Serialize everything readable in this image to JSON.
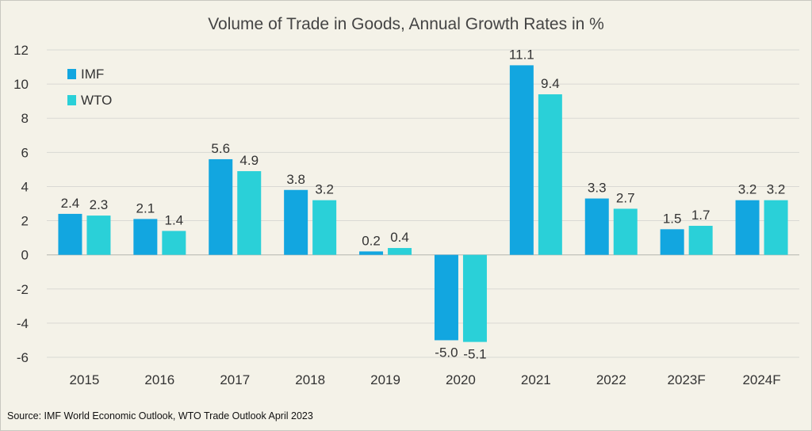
{
  "chart_data": {
    "type": "bar",
    "title": "Volume of Trade in Goods,  Annual Growth Rates in %",
    "categories": [
      "2015",
      "2016",
      "2017",
      "2018",
      "2019",
      "2020",
      "2021",
      "2022",
      "2023F",
      "2024F"
    ],
    "series": [
      {
        "name": "IMF",
        "color": "#12a6e0",
        "values": [
          2.4,
          2.1,
          5.6,
          3.8,
          0.2,
          -5.0,
          11.1,
          3.3,
          1.5,
          3.2
        ]
      },
      {
        "name": "WTO",
        "color": "#2ad0d8",
        "values": [
          2.3,
          1.4,
          4.9,
          3.2,
          0.4,
          -5.1,
          9.4,
          2.7,
          1.7,
          3.2
        ]
      }
    ],
    "value_labels": [
      [
        "2.4",
        "2.1",
        "5.6",
        "3.8",
        "0.2",
        "-5.0",
        "11.1",
        "3.3",
        "1.5",
        "3.2"
      ],
      [
        "2.3",
        "1.4",
        "4.9",
        "3.2",
        "0.4",
        "-5.1",
        "9.4",
        "2.7",
        "1.7",
        "3.2"
      ]
    ],
    "yticks": [
      -6,
      -4,
      -2,
      0,
      2,
      4,
      6,
      8,
      10,
      12
    ],
    "ylim": [
      -6,
      12
    ],
    "xlabel": "",
    "ylabel": "",
    "grid": true,
    "legend_position": "top-left"
  },
  "footer": {
    "source": "Source: IMF World Economic Outlook, WTO Trade Outlook April 2023"
  }
}
